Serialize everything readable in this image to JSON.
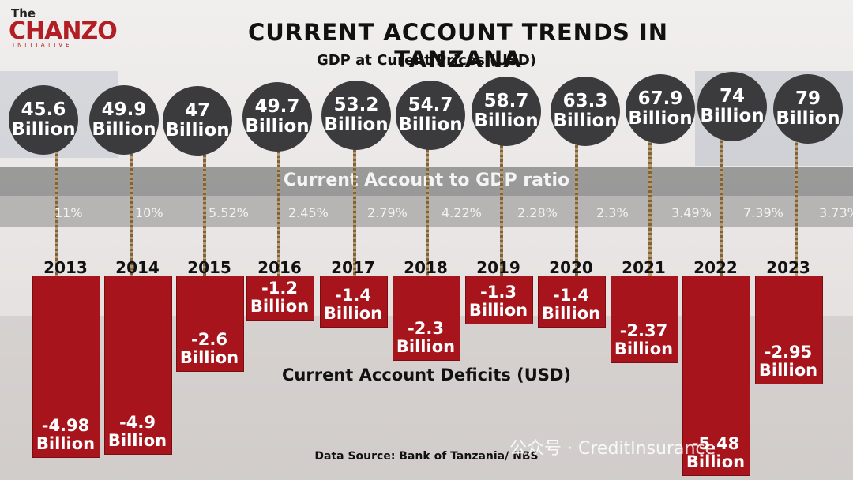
{
  "logo": {
    "the": "The",
    "main": "CHANZO",
    "sub": "INITIATIVE"
  },
  "title": "CURRENT ACCOUNT TRENDS IN TANZANA",
  "subtitle": "GDP at Curent Prices (USD)",
  "band_label": "Current Account to GDP ratio",
  "deficit_label": "Current Account Deficits (USD)",
  "source": "Data Source: Bank of Tanzania/ NBS",
  "watermark": "公众号 · CreditInsurance",
  "colors": {
    "bar": "#a8141b",
    "circle": "#3b3b3d",
    "logo": "#b21e24"
  },
  "chart_data": {
    "type": "bar",
    "categories": [
      "2013",
      "2014",
      "2015",
      "2016",
      "2017",
      "2018",
      "2019",
      "2020",
      "2021",
      "2022",
      "2023"
    ],
    "series": [
      {
        "name": "GDP at Curent Prices (USD)",
        "values": [
          45.6,
          49.9,
          47,
          49.7,
          53.2,
          54.7,
          58.7,
          63.3,
          67.9,
          74,
          79
        ],
        "labels": [
          "45.6",
          "49.9",
          "47",
          "49.7",
          "53.2",
          "54.7",
          "58.7",
          "63.3",
          "67.9",
          "74",
          "79"
        ]
      },
      {
        "name": "Current Account to GDP ratio",
        "values": [
          11,
          10,
          5.52,
          2.45,
          2.79,
          4.22,
          2.28,
          2.3,
          3.49,
          7.39,
          3.73
        ],
        "labels": [
          "11%",
          "10%",
          "5.52%",
          "2.45%",
          "2.79%",
          "4.22%",
          "2.28%",
          "2.3%",
          "3.49%",
          "7.39%",
          "3.73%"
        ]
      },
      {
        "name": "Current Account Deficits (USD)",
        "values": [
          -4.98,
          -4.9,
          -2.6,
          -1.2,
          -1.4,
          -2.3,
          -1.3,
          -1.4,
          -2.37,
          -5.48,
          -2.95
        ],
        "labels": [
          "-4.98",
          "-4.9",
          "-2.6",
          "-1.2",
          "-1.4",
          "-2.3",
          "-1.3",
          "-1.4",
          "-2.37",
          "-5.48",
          "-2.95"
        ]
      }
    ],
    "unit_label": "Billion",
    "ylim": [
      -5.48,
      0
    ]
  }
}
